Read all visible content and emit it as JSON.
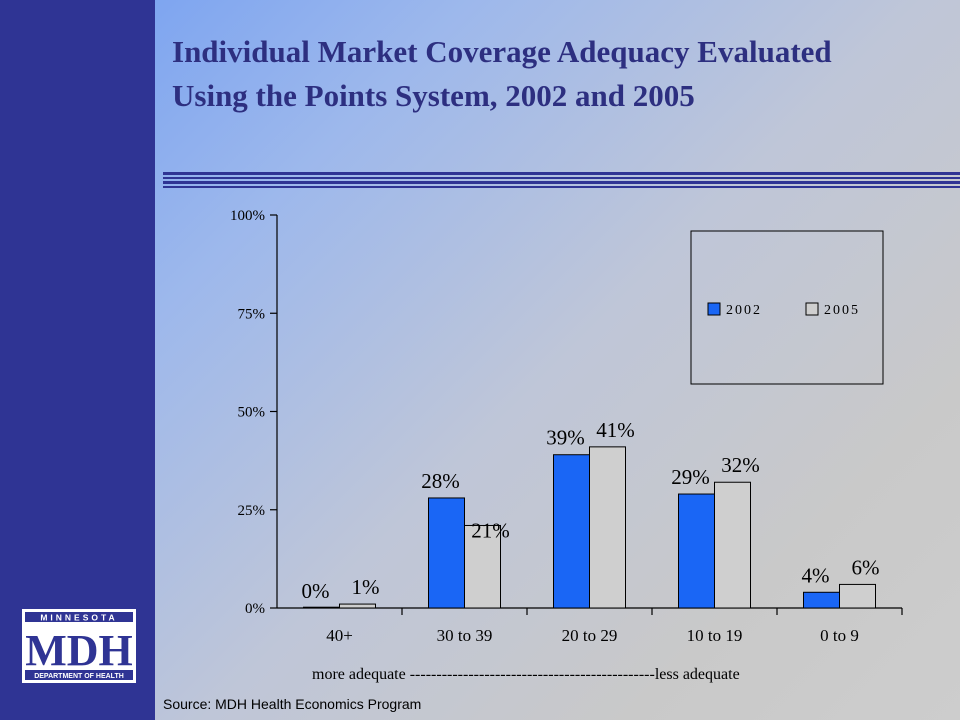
{
  "title": "Individual Market Coverage Adequacy Evaluated Using the Points System, 2002 and 2005",
  "logo": {
    "top": "MINNESOTA",
    "main": "MDH",
    "bottom": "DEPARTMENT OF HEALTH"
  },
  "bottom_note": "more adequate ----------------------------------------------less  adequate",
  "source": "Source: MDH Health Economics Program",
  "colors": {
    "series_2002": "#1a66f5",
    "series_2005": "#cfcfcf",
    "sidebar": "#2f3494",
    "title": "#2d2f80"
  },
  "chart_data": {
    "type": "bar",
    "categories": [
      "40+",
      "30 to 39",
      "20 to 29",
      "10 to 19",
      "0 to 9"
    ],
    "series": [
      {
        "name": "2002",
        "values": [
          0,
          28,
          39,
          29,
          4
        ],
        "labels": [
          "0%",
          "28%",
          "39%",
          "29%",
          "4%"
        ]
      },
      {
        "name": "2005",
        "values": [
          1,
          21,
          41,
          32,
          6
        ],
        "labels": [
          "1%",
          "21%",
          "41%",
          "32%",
          "6%"
        ]
      }
    ],
    "ylim": [
      0,
      100
    ],
    "yticks": [
      0,
      25,
      50,
      75,
      100
    ],
    "ytick_labels": [
      "0%",
      "25%",
      "50%",
      "75%",
      "100%"
    ],
    "grid": false,
    "legend_position": "top-right"
  }
}
